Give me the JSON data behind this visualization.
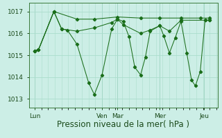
{
  "bg_color": "#cceee6",
  "grid_color": "#aaddcc",
  "line_color": "#1a6e1a",
  "ylim": [
    1012.6,
    1017.4
  ],
  "yticks": [
    1013,
    1014,
    1015,
    1016,
    1017
  ],
  "xlabel": "Pression niveau de la mer( hPa )",
  "xlabel_fontsize": 8.5,
  "tick_fontsize": 6.5,
  "day_labels": [
    "Lun",
    "Ven",
    "Mar",
    "Mer",
    "Jeu"
  ],
  "day_positions": [
    0.0,
    3.5,
    4.3,
    6.5,
    8.8
  ],
  "xlim": [
    -0.3,
    9.5
  ],
  "series": [
    [
      [
        0.0,
        1015.2
      ],
      [
        0.2,
        1015.25
      ],
      [
        1.0,
        1017.0
      ],
      [
        1.4,
        1016.2
      ],
      [
        1.7,
        1016.15
      ],
      [
        2.2,
        1015.5
      ],
      [
        2.8,
        1013.75
      ],
      [
        3.1,
        1013.2
      ],
      [
        3.5,
        1014.1
      ],
      [
        4.0,
        1016.2
      ],
      [
        4.3,
        1016.65
      ],
      [
        4.6,
        1016.55
      ],
      [
        4.9,
        1015.85
      ],
      [
        5.2,
        1014.45
      ],
      [
        5.5,
        1014.1
      ],
      [
        5.75,
        1014.9
      ],
      [
        6.0,
        1016.1
      ],
      [
        6.5,
        1016.35
      ],
      [
        6.7,
        1015.9
      ],
      [
        7.0,
        1015.1
      ],
      [
        7.3,
        1015.8
      ],
      [
        7.6,
        1016.55
      ],
      [
        7.9,
        1015.1
      ],
      [
        8.15,
        1013.85
      ],
      [
        8.35,
        1013.6
      ],
      [
        8.6,
        1014.25
      ],
      [
        8.85,
        1016.6
      ],
      [
        9.1,
        1016.6
      ]
    ],
    [
      [
        0.0,
        1015.2
      ],
      [
        0.2,
        1015.25
      ],
      [
        1.0,
        1017.0
      ],
      [
        1.4,
        1016.2
      ],
      [
        2.2,
        1016.1
      ],
      [
        3.1,
        1016.25
      ],
      [
        4.0,
        1016.5
      ],
      [
        4.3,
        1016.65
      ],
      [
        4.6,
        1016.4
      ],
      [
        5.5,
        1016.0
      ],
      [
        6.0,
        1016.15
      ],
      [
        6.5,
        1016.35
      ],
      [
        7.0,
        1016.1
      ],
      [
        7.6,
        1016.6
      ],
      [
        8.85,
        1016.6
      ],
      [
        9.1,
        1016.6
      ]
    ],
    [
      [
        0.0,
        1015.2
      ],
      [
        0.2,
        1015.25
      ],
      [
        1.0,
        1017.0
      ],
      [
        2.2,
        1016.65
      ],
      [
        3.1,
        1016.65
      ],
      [
        4.3,
        1016.75
      ],
      [
        5.5,
        1016.7
      ],
      [
        6.5,
        1016.7
      ],
      [
        7.6,
        1016.7
      ],
      [
        8.6,
        1016.7
      ],
      [
        9.1,
        1016.7
      ]
    ]
  ]
}
